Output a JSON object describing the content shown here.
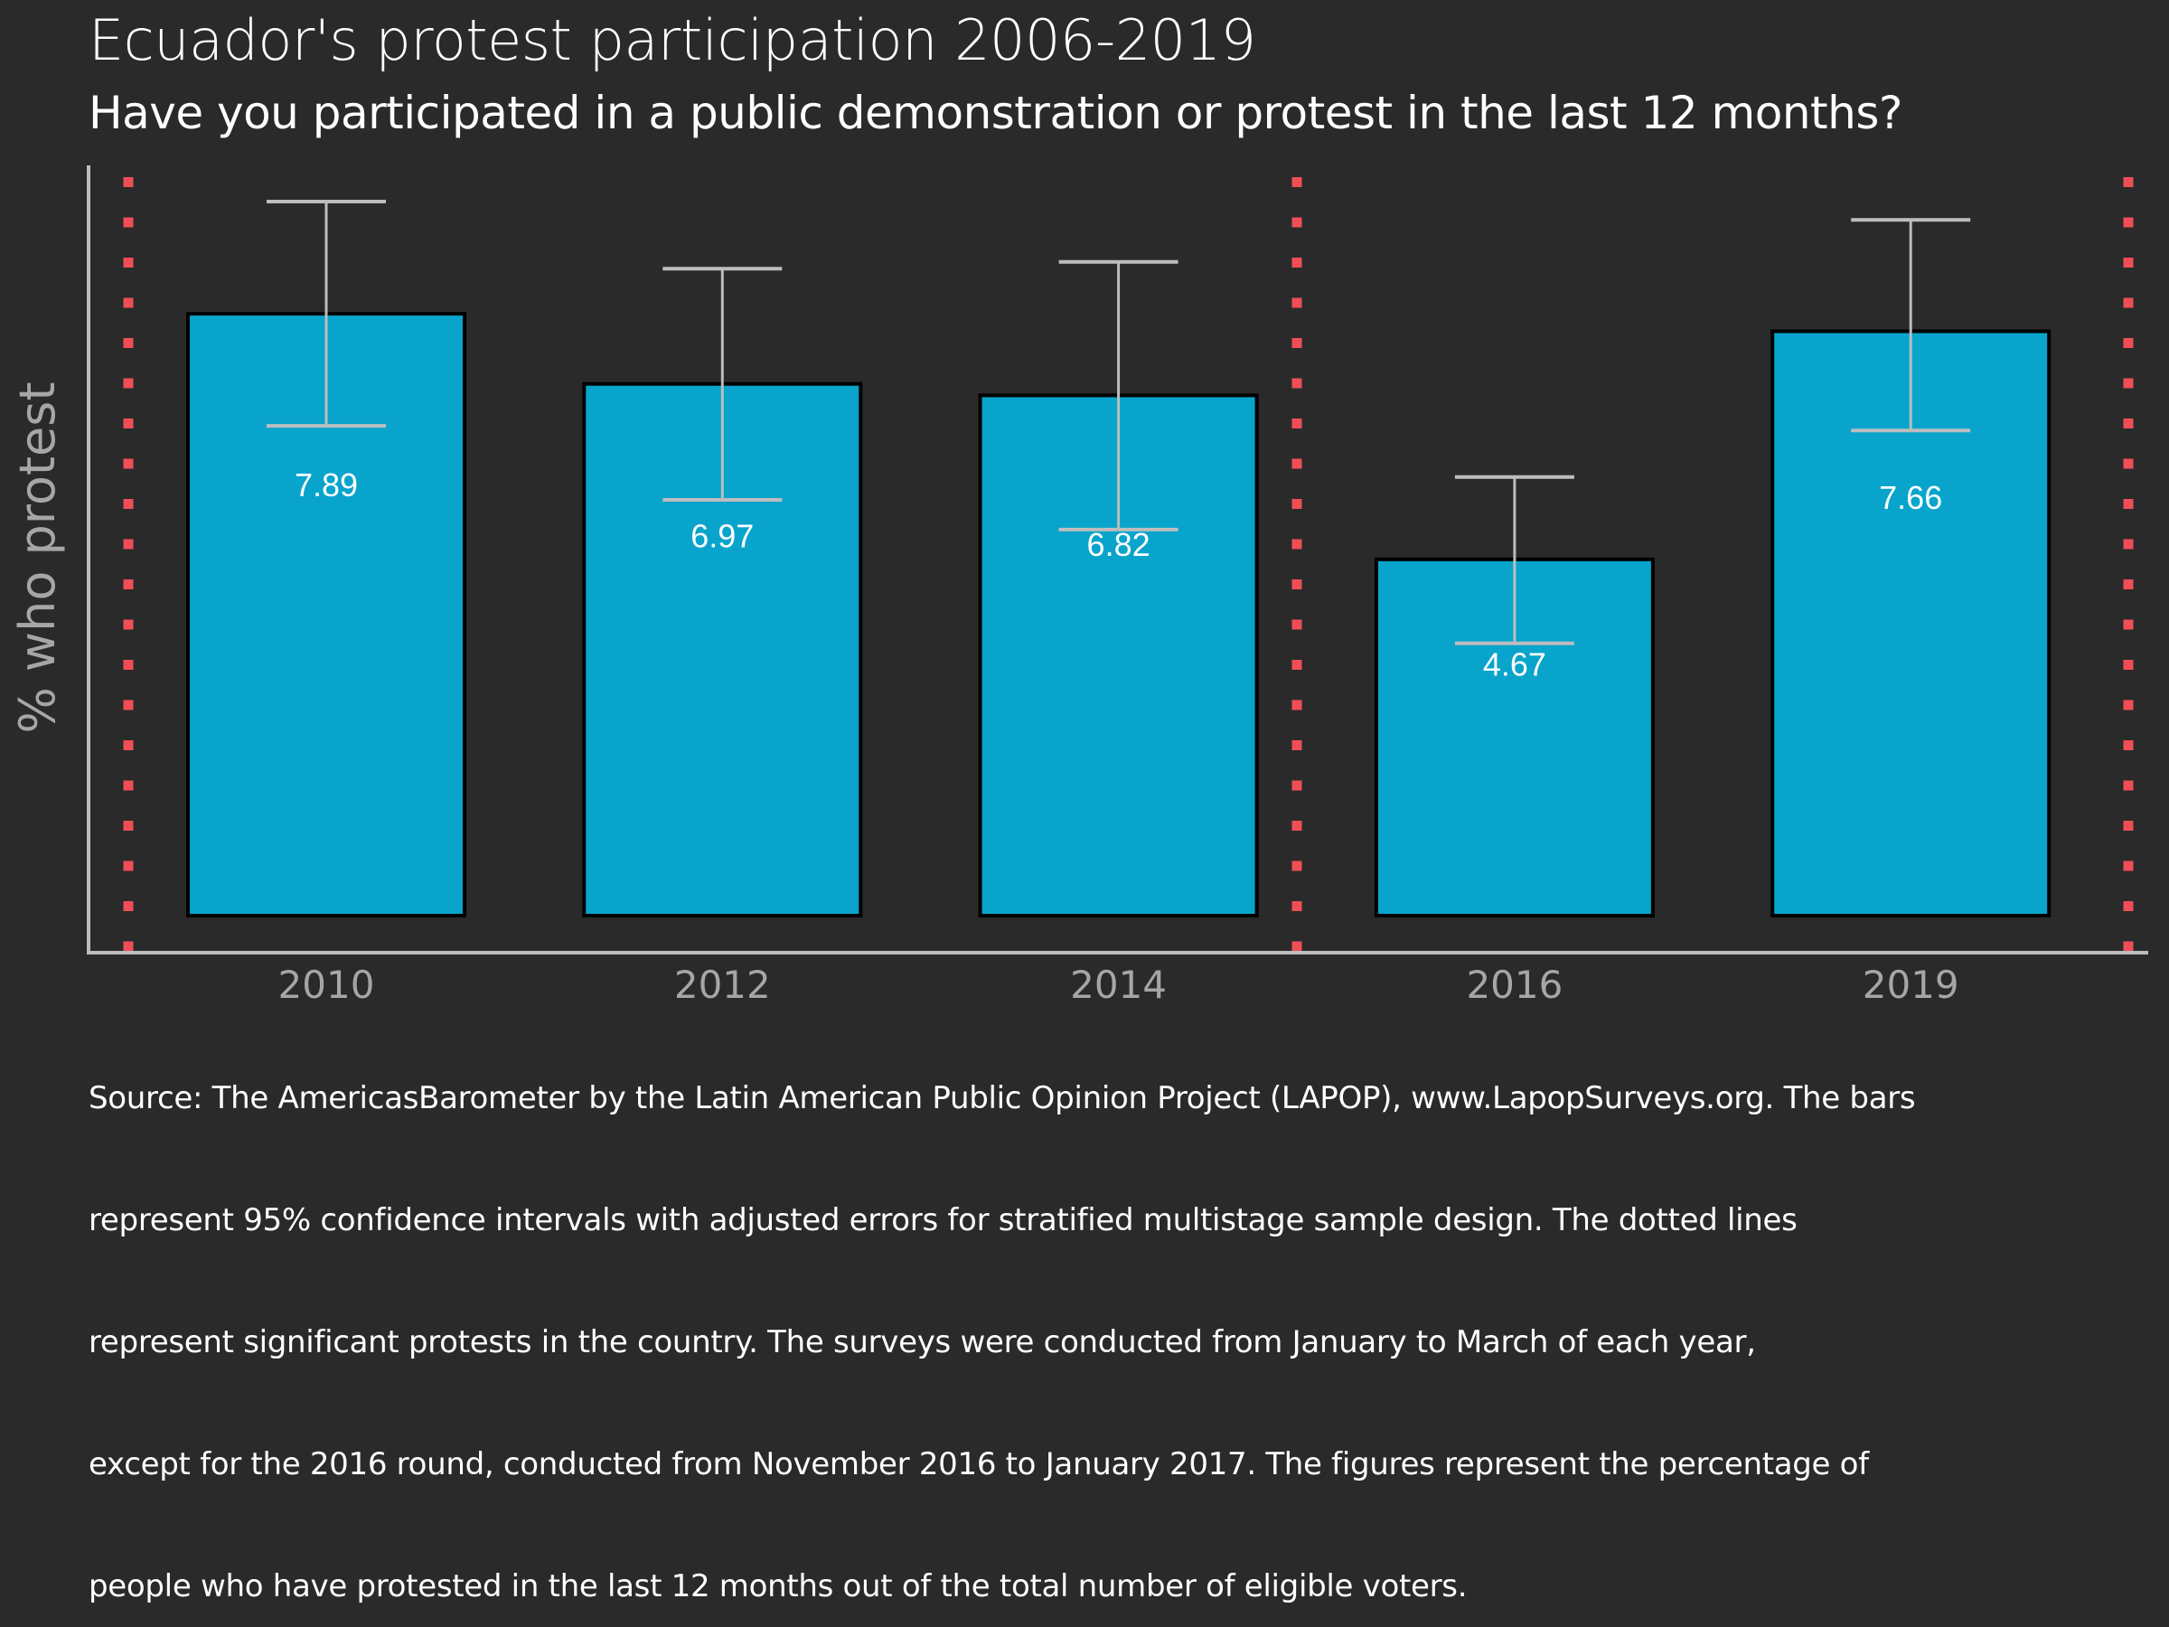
{
  "chart_data": {
    "type": "bar",
    "title": "Ecuador's protest participation 2006-2019",
    "subtitle": "Have you participated in a public demonstration or protest in the last 12 months?",
    "xlabel": "",
    "ylabel": "% who protest",
    "categories": [
      "2010",
      "2012",
      "2014",
      "2016",
      "2019"
    ],
    "values": [
      7.89,
      6.97,
      6.82,
      4.67,
      7.66
    ],
    "value_labels": [
      "7.89",
      "6.97",
      "6.82",
      "4.67",
      "7.66"
    ],
    "ci_upper": [
      9.36,
      8.48,
      8.57,
      5.75,
      9.12
    ],
    "ci_lower": [
      6.42,
      5.45,
      5.06,
      3.57,
      6.36
    ],
    "ylim": [
      0,
      10.3
    ],
    "y_ticks_shown": false,
    "grid": false,
    "protest_markers": [
      {
        "position": "before 2010"
      },
      {
        "position": "between 2014 and 2016"
      },
      {
        "position": "after 2019"
      }
    ],
    "colors": {
      "background": "#2a2a2a",
      "bar_fill": "#08a4cc",
      "bar_outline": "#000000",
      "error_bar": "#bdbdbd",
      "protest_line": "#f04e57",
      "axis": "#bdbdbd",
      "tick_label": "#a6a6a6",
      "value_label": "#ffffff"
    }
  },
  "footnote": {
    "lines": [
      "Source: The AmericasBarometer by the Latin American Public Opinion Project (LAPOP), www.LapopSurveys.org. The bars",
      "represent 95% confidence intervals with adjusted errors for stratified multistage sample design. The dotted lines",
      "represent significant protests in the country. The surveys were conducted from January to March of each year,",
      "except for the 2016 round, conducted from November 2016 to January 2017. The figures represent the percentage of",
      "people who have protested in the last 12 months out of the total number of eligible voters."
    ]
  }
}
